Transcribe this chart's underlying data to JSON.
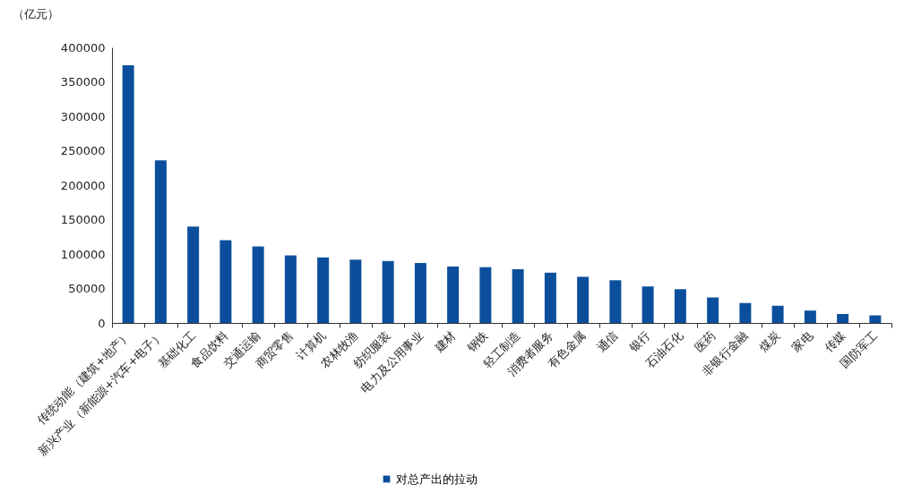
{
  "chart_data": {
    "type": "bar",
    "ylabel": "（亿元）",
    "categories": [
      "传统动能（建筑+地产）",
      "新兴产业（新能源+汽车+电子）",
      "基础化工",
      "食品饮料",
      "交通运输",
      "商贸零售",
      "计算机",
      "农林牧渔",
      "纺织服装",
      "电力及公用事业",
      "建材",
      "钢铁",
      "轻工制造",
      "消费者服务",
      "有色金属",
      "通信",
      "银行",
      "石油石化",
      "医药",
      "非银行金融",
      "煤炭",
      "家电",
      "传媒",
      "国防军工"
    ],
    "series": [
      {
        "name": "对总产出的拉动",
        "color": "#0b4f9c",
        "values": [
          374000,
          236000,
          140000,
          120000,
          111000,
          98000,
          95000,
          92000,
          90000,
          87000,
          82000,
          81000,
          78000,
          73000,
          67000,
          62000,
          53000,
          49000,
          37000,
          29000,
          25000,
          18000,
          13000,
          11000
        ]
      }
    ],
    "ylim": [
      0,
      400000
    ],
    "yticks": [
      0,
      50000,
      100000,
      150000,
      200000,
      250000,
      300000,
      350000,
      400000
    ],
    "grid": false,
    "legend": "bottom"
  }
}
